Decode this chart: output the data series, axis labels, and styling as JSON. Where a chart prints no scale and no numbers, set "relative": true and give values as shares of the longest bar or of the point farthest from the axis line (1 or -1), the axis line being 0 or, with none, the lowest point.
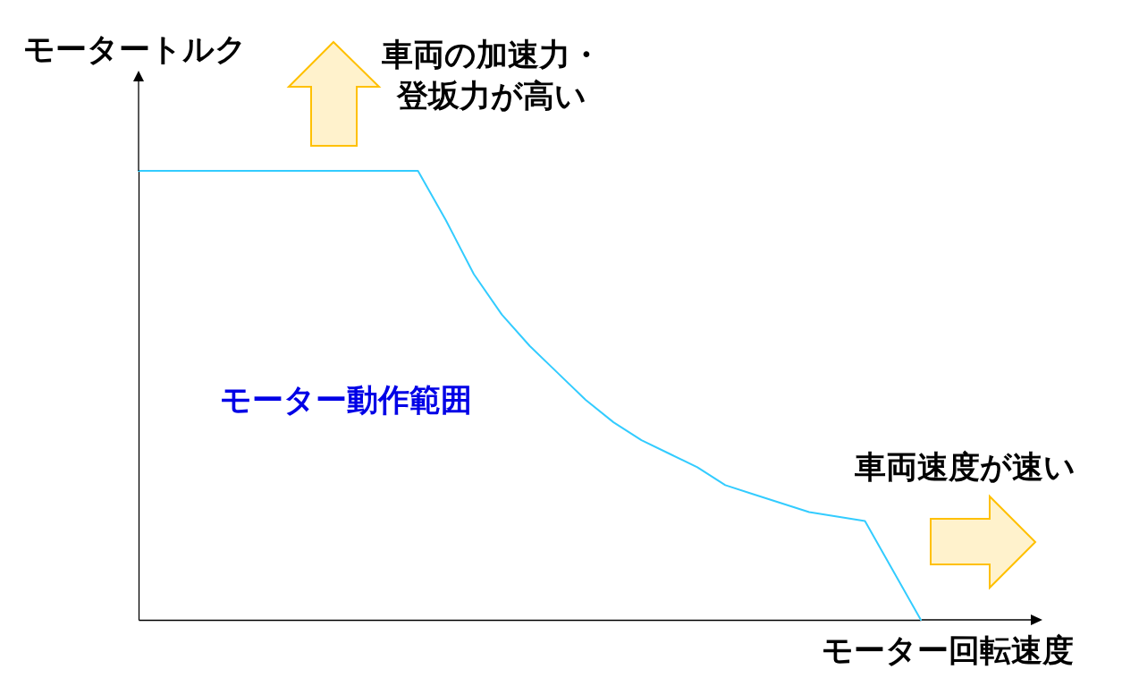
{
  "chart_data": {
    "type": "line",
    "relative": true,
    "xlabel": "モーター回転速度",
    "ylabel": "モータートルク",
    "categories": [
      null,
      null,
      null,
      null,
      null,
      null,
      null,
      null,
      null,
      null,
      null,
      null,
      null,
      null,
      null,
      null,
      null,
      null,
      null,
      null,
      null,
      null,
      null,
      null,
      null,
      null,
      null,
      null,
      null
    ],
    "values": [
      1,
      1,
      1,
      1,
      1,
      1,
      1,
      1,
      1,
      1,
      1,
      0.89,
      0.77,
      0.68,
      0.61,
      0.55,
      0.49,
      0.44,
      0.4,
      0.37,
      0.34,
      0.3,
      0.28,
      0.26,
      0.24,
      0.23,
      0.22,
      0.11,
      0
    ],
    "color": "#33ccff",
    "annotations": [
      "車両の加速力・登坂力が高い",
      "車両速度が速い",
      "モーター動作範囲"
    ]
  }
}
